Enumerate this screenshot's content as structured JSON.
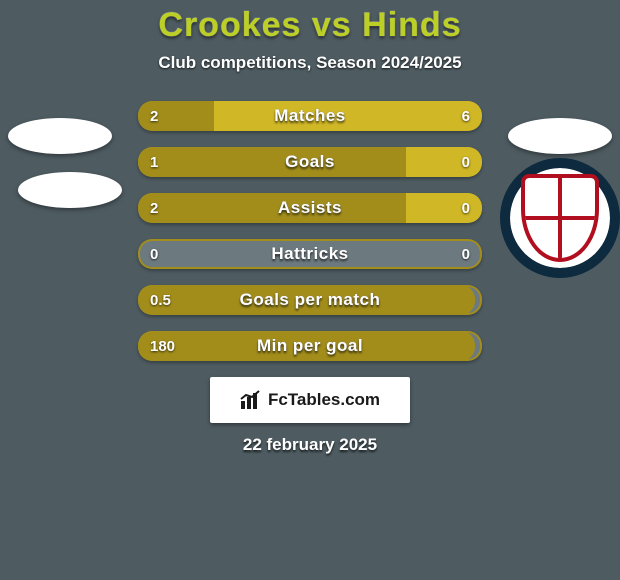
{
  "background_color": "#4e5c62",
  "title": "Crookes vs Hinds",
  "title_color": "#bbcf26",
  "title_fontsize": 34,
  "subtitle": "Club competitions, Season 2024/2025",
  "subtitle_color": "#ffffff",
  "subtitle_fontsize": 17,
  "left_color": "#a28d1b",
  "right_color": "#d0b726",
  "empty_track_color": "#6c7a80",
  "bar_border_color": "#a28d1b",
  "bars": [
    {
      "label": "Matches",
      "left": "2",
      "right": "6",
      "left_pct": 22,
      "right_pct": 78,
      "show_right_fill": true
    },
    {
      "label": "Goals",
      "left": "1",
      "right": "0",
      "left_pct": 78,
      "right_pct": 22,
      "show_right_fill": true
    },
    {
      "label": "Assists",
      "left": "2",
      "right": "0",
      "left_pct": 78,
      "right_pct": 22,
      "show_right_fill": true
    },
    {
      "label": "Hattricks",
      "left": "0",
      "right": "0",
      "left_pct": 0,
      "right_pct": 0,
      "show_right_fill": false
    },
    {
      "label": "Goals per match",
      "left": "0.5",
      "right": "",
      "left_pct": 98,
      "right_pct": 0,
      "show_right_fill": false
    },
    {
      "label": "Min per goal",
      "left": "180",
      "right": "",
      "left_pct": 98,
      "right_pct": 0,
      "show_right_fill": false
    }
  ],
  "footer_brand": "FcTables.com",
  "date": "22 february 2025",
  "crest_ring_color": "#0d2a3f",
  "crest_red": "#b10f1f"
}
